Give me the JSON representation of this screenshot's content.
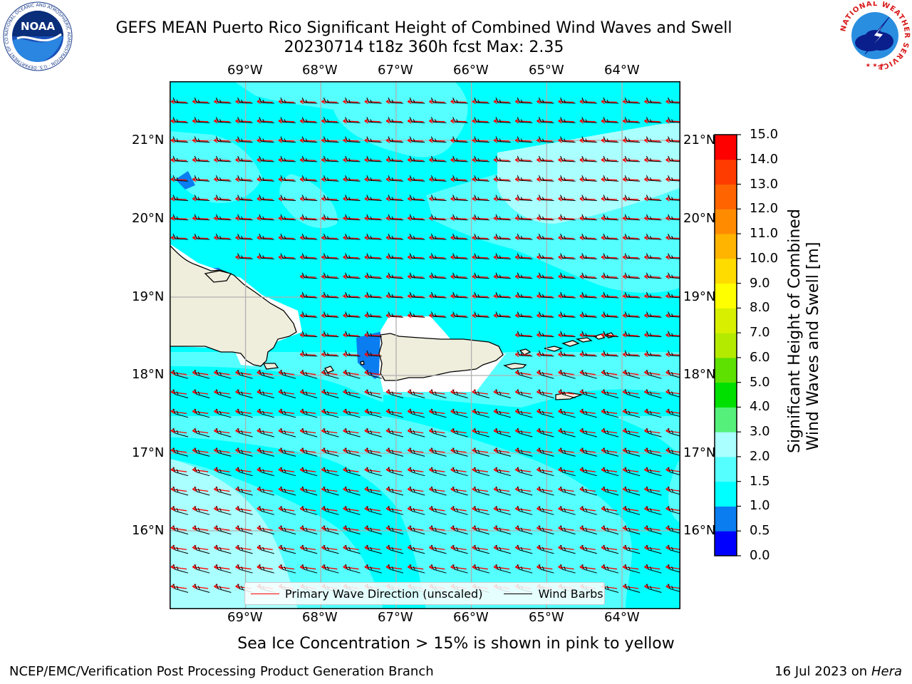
{
  "title_line1": "GEFS MEAN Puerto Rico Significant Height of Combined Wind Waves and Swell",
  "title_line2": "20230714 t18z 360h fcst   Max: 2.35",
  "lon_labels": [
    "69°W",
    "68°W",
    "67°W",
    "66°W",
    "65°W",
    "64°W"
  ],
  "lat_labels": [
    "21°N",
    "20°N",
    "19°N",
    "18°N",
    "17°N",
    "16°N"
  ],
  "colorbar": {
    "label_line1": "Significant Height of Combined",
    "label_line2": "Wind Waves and Swell [m]",
    "ticks": [
      "15.0",
      "14.0",
      "13.0",
      "12.0",
      "11.0",
      "10.0",
      "9.0",
      "8.0",
      "7.0",
      "6.0",
      "5.0",
      "4.0",
      "3.0",
      "2.0",
      "1.5",
      "1.0",
      "0.5",
      "0.0"
    ],
    "colors": [
      "#0000ff",
      "#0a7df0",
      "#00ffff",
      "#55ffff",
      "#aaffff",
      "#55f07a",
      "#00e000",
      "#5ee000",
      "#b4ea00",
      "#d8f000",
      "#ffff00",
      "#ffdc00",
      "#ffb400",
      "#ff8c00",
      "#ff6400",
      "#ff3c00",
      "#ff0000"
    ]
  },
  "legend": {
    "primary_wave": "Primary Wave Direction (unscaled)",
    "wind_barbs": "Wind Barbs",
    "primary_color": "#ff0000",
    "barb_color": "#000000"
  },
  "caption": "Sea Ice Concentration > 15% is shown in pink to yellow",
  "footer_left": "NCEP/EMC/Verification Post Processing Product Generation Branch",
  "footer_right_date": "16 Jul 2023 on ",
  "footer_right_host": "Hera",
  "logo_left": "NOAA",
  "logo_left_ring": "NATIONAL OCEANIC AND ATMOSPHERIC ADMINISTRATION · U.S. DEPARTMENT OF COMMERCE",
  "logo_right_ring": "NATIONAL WEATHER SERVICE"
}
